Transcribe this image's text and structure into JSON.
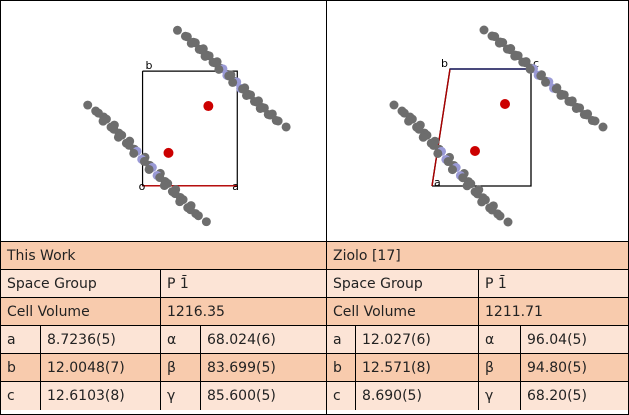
{
  "panels": [
    {
      "title": "This Work",
      "axis_labels": [
        "b",
        "o",
        "a"
      ],
      "space_group_label": "Space Group",
      "space_group": "P 1̄",
      "cell_volume_label": "Cell Volume",
      "cell_volume": "1216.35",
      "params": [
        [
          "a",
          "8.7236(5)",
          "α",
          "68.024(6)"
        ],
        [
          "b",
          "12.0048(7)",
          "β",
          "83.699(5)"
        ],
        [
          "c",
          "12.6103(8)",
          "γ",
          "85.600(5)"
        ]
      ]
    },
    {
      "title": "Ziolo [17]",
      "axis_labels": [
        "b",
        "c",
        "a"
      ],
      "space_group_label": "Space Group",
      "space_group": "P 1̄",
      "cell_volume_label": "Cell Volume",
      "cell_volume": "1211.71",
      "params": [
        [
          "a",
          "12.027(6)",
          "α",
          "96.04(5)"
        ],
        [
          "b",
          "12.571(8)",
          "β",
          "94.80(5)"
        ],
        [
          "c",
          "8.690(5)",
          "γ",
          "68.20(5)"
        ]
      ]
    }
  ]
}
